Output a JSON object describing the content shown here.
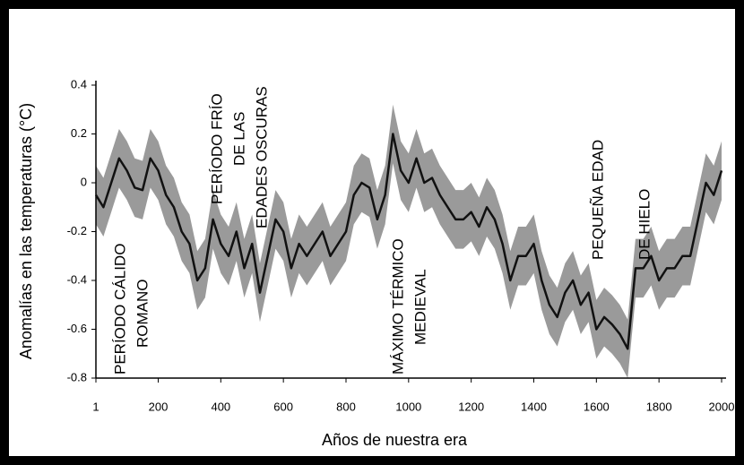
{
  "chart_data": {
    "type": "line",
    "ylabel": "Anomalías en las temperaturas (°C)",
    "xlabel": "Años de nuestra era",
    "x": [
      1,
      25,
      50,
      75,
      100,
      125,
      150,
      175,
      200,
      225,
      250,
      275,
      300,
      325,
      350,
      375,
      400,
      425,
      450,
      475,
      500,
      525,
      550,
      575,
      600,
      625,
      650,
      675,
      700,
      725,
      750,
      775,
      800,
      825,
      850,
      875,
      900,
      925,
      950,
      975,
      1000,
      1025,
      1050,
      1075,
      1100,
      1125,
      1150,
      1175,
      1200,
      1225,
      1250,
      1275,
      1300,
      1325,
      1350,
      1375,
      1400,
      1425,
      1450,
      1475,
      1500,
      1525,
      1550,
      1575,
      1600,
      1625,
      1650,
      1675,
      1700,
      1725,
      1750,
      1775,
      1800,
      1825,
      1850,
      1875,
      1900,
      1925,
      1950,
      1975,
      2000
    ],
    "values": [
      -0.05,
      -0.1,
      0,
      0.1,
      0.05,
      -0.02,
      -0.03,
      0.1,
      0.05,
      -0.05,
      -0.1,
      -0.2,
      -0.25,
      -0.4,
      -0.35,
      -0.15,
      -0.25,
      -0.3,
      -0.2,
      -0.35,
      -0.25,
      -0.45,
      -0.3,
      -0.15,
      -0.2,
      -0.35,
      -0.25,
      -0.3,
      -0.25,
      -0.2,
      -0.3,
      -0.25,
      -0.2,
      -0.05,
      0,
      -0.02,
      -0.15,
      -0.05,
      0.2,
      0.05,
      0,
      0.1,
      0,
      0.02,
      -0.05,
      -0.1,
      -0.15,
      -0.15,
      -0.12,
      -0.18,
      -0.1,
      -0.15,
      -0.25,
      -0.4,
      -0.3,
      -0.3,
      -0.25,
      -0.4,
      -0.5,
      -0.55,
      -0.45,
      -0.4,
      -0.5,
      -0.45,
      -0.6,
      -0.55,
      -0.58,
      -0.62,
      -0.68,
      -0.35,
      -0.35,
      -0.3,
      -0.4,
      -0.35,
      -0.35,
      -0.3,
      -0.3,
      -0.15,
      0,
      -0.05,
      0.05
    ],
    "color": "#111111",
    "band": {
      "color": "#9a9a9a",
      "upper": [
        0.07,
        0.02,
        0.12,
        0.22,
        0.17,
        0.1,
        0.09,
        0.22,
        0.17,
        0.07,
        0.02,
        -0.08,
        -0.13,
        -0.28,
        -0.23,
        -0.03,
        -0.13,
        -0.18,
        -0.08,
        -0.23,
        -0.13,
        -0.33,
        -0.18,
        -0.03,
        -0.08,
        -0.23,
        -0.13,
        -0.18,
        -0.13,
        -0.08,
        -0.18,
        -0.13,
        -0.08,
        0.07,
        0.12,
        0.1,
        -0.03,
        0.07,
        0.32,
        0.17,
        0.12,
        0.22,
        0.12,
        0.14,
        0.07,
        0.02,
        -0.03,
        -0.03,
        0,
        -0.06,
        0.02,
        -0.03,
        -0.13,
        -0.28,
        -0.18,
        -0.18,
        -0.13,
        -0.28,
        -0.38,
        -0.43,
        -0.33,
        -0.28,
        -0.38,
        -0.33,
        -0.48,
        -0.43,
        -0.46,
        -0.5,
        -0.56,
        -0.23,
        -0.23,
        -0.18,
        -0.28,
        -0.23,
        -0.23,
        -0.18,
        -0.18,
        -0.03,
        0.12,
        0.07,
        0.17
      ],
      "lower": [
        -0.17,
        -0.22,
        -0.12,
        -0.02,
        -0.07,
        -0.14,
        -0.15,
        -0.02,
        -0.07,
        -0.17,
        -0.22,
        -0.32,
        -0.37,
        -0.52,
        -0.47,
        -0.27,
        -0.37,
        -0.42,
        -0.32,
        -0.47,
        -0.37,
        -0.57,
        -0.42,
        -0.27,
        -0.32,
        -0.47,
        -0.37,
        -0.42,
        -0.37,
        -0.32,
        -0.42,
        -0.37,
        -0.32,
        -0.17,
        -0.12,
        -0.14,
        -0.27,
        -0.17,
        0.08,
        -0.07,
        -0.12,
        -0.02,
        -0.12,
        -0.1,
        -0.17,
        -0.22,
        -0.27,
        -0.27,
        -0.24,
        -0.3,
        -0.22,
        -0.27,
        -0.37,
        -0.52,
        -0.42,
        -0.42,
        -0.37,
        -0.52,
        -0.62,
        -0.67,
        -0.57,
        -0.52,
        -0.62,
        -0.57,
        -0.72,
        -0.67,
        -0.7,
        -0.74,
        -0.8,
        -0.47,
        -0.47,
        -0.42,
        -0.52,
        -0.47,
        -0.47,
        -0.42,
        -0.42,
        -0.27,
        -0.12,
        -0.17,
        -0.07
      ]
    },
    "xlim": [
      1,
      2000
    ],
    "xticks": [
      1,
      200,
      400,
      600,
      800,
      1000,
      1200,
      1400,
      1600,
      1800,
      2000
    ],
    "ylim": [
      -0.8,
      0.4
    ],
    "yticks": [
      0.4,
      0.2,
      0,
      -0.2,
      -0.4,
      -0.6,
      -0.8
    ],
    "grid": false,
    "annotations": [
      "PERÍODO CÁLIDO",
      "ROMANO",
      "PERÍODO FRÍO",
      "DE LAS",
      "EDADES OSCURAS",
      "MÁXIMO TÉRMICO",
      "MEDIEVAL",
      "PEQUEÑA EDAD",
      "DE HIELO"
    ]
  }
}
